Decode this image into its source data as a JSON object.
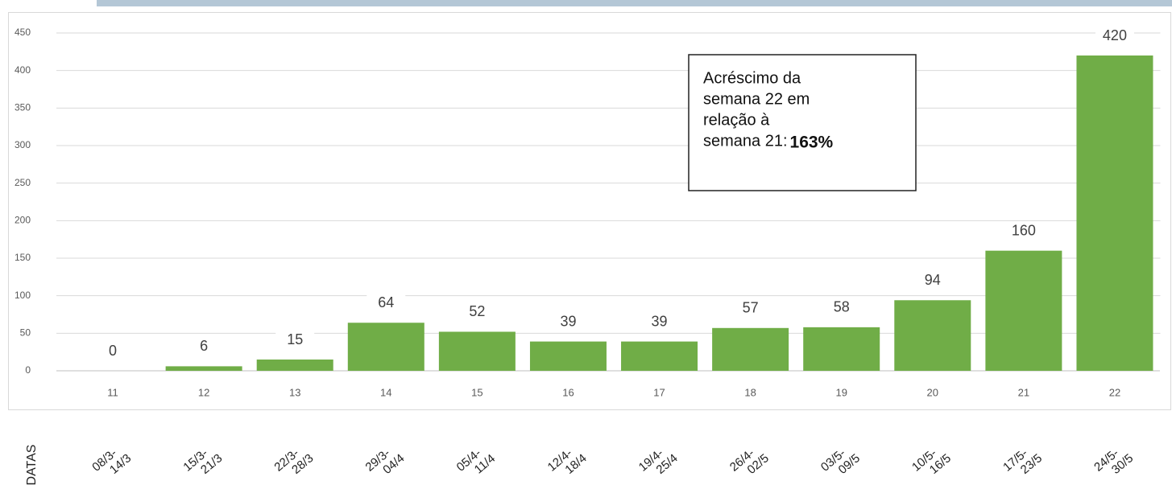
{
  "chart_data": {
    "type": "bar",
    "categories": [
      "11",
      "12",
      "13",
      "14",
      "15",
      "16",
      "17",
      "18",
      "19",
      "20",
      "21",
      "22"
    ],
    "values": [
      0,
      6,
      15,
      64,
      52,
      39,
      39,
      57,
      58,
      94,
      160,
      420
    ],
    "color": "#70ad47",
    "ylim": [
      0,
      450
    ],
    "yticks": [
      0,
      50,
      100,
      150,
      200,
      250,
      300,
      350,
      400,
      450
    ],
    "grid": true,
    "annotation": {
      "lines": [
        "Acréscimo da",
        "semana 22 em",
        "relação à",
        "semana 21:"
      ],
      "highlight": "163%"
    },
    "date_axis_label": "DATAS",
    "date_labels": [
      [
        "08/3-",
        "14/3"
      ],
      [
        "15/3-",
        "21/3"
      ],
      [
        "22/3-",
        "28/3"
      ],
      [
        "29/3-",
        "04/4"
      ],
      [
        "05/4-",
        "11/4"
      ],
      [
        "12/4-",
        "18/4"
      ],
      [
        "19/4-",
        "25/4"
      ],
      [
        "26/4-",
        "02/5"
      ],
      [
        "03/5-",
        "09/5"
      ],
      [
        "10/5-",
        "16/5"
      ],
      [
        "17/5-",
        "23/5"
      ],
      [
        "24/5-",
        "30/5"
      ]
    ]
  }
}
